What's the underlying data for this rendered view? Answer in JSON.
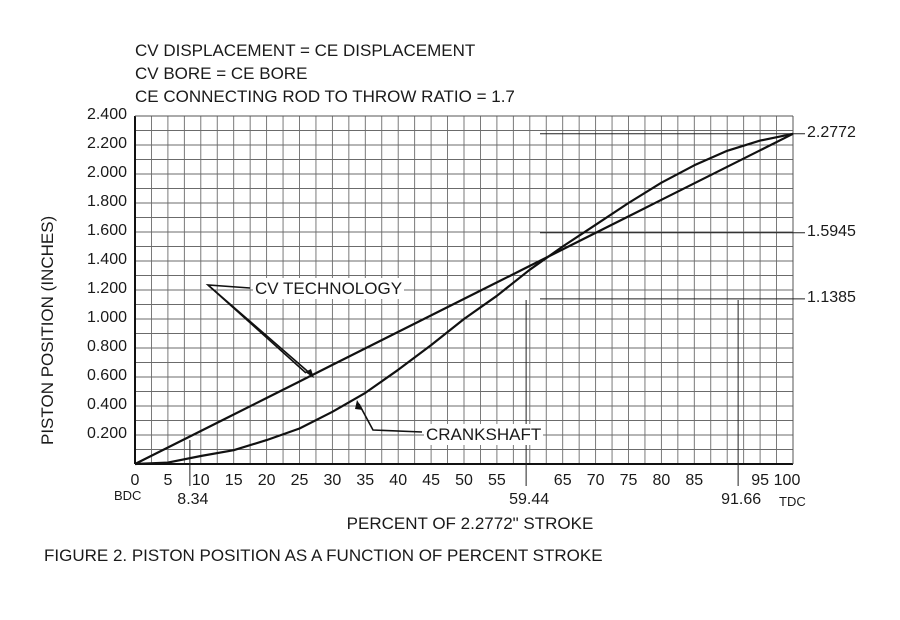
{
  "header": {
    "notes": [
      "CV DISPLACEMENT = CE DISPLACEMENT",
      "CV BORE = CE BORE",
      "CE CONNECTING ROD TO THROW RATIO =  1.7"
    ]
  },
  "chart_data": {
    "type": "line",
    "title": "FIGURE 2.  PISTON POSITION AS A FUNCTION OF PERCENT STROKE",
    "xlabel": "PERCENT OF 2.2772\" STROKE",
    "ylabel": "PISTON POSITION (INCHES)",
    "xlim": [
      0,
      100
    ],
    "ylim": [
      0,
      2.4
    ],
    "grid": true,
    "x_ticks": [
      "0",
      "5",
      "10",
      "15",
      "20",
      "25",
      "30",
      "35",
      "40",
      "45",
      "50",
      "55",
      "65",
      "70",
      "75",
      "80",
      "85",
      "95",
      "100"
    ],
    "x_tick_values": [
      0,
      5,
      10,
      15,
      20,
      25,
      30,
      35,
      40,
      45,
      50,
      55,
      65,
      70,
      75,
      80,
      85,
      95,
      100
    ],
    "x_end_labels": {
      "start": "BDC",
      "end": "TDC"
    },
    "x_markers": [
      {
        "value": 8.34,
        "label": "8.34"
      },
      {
        "value": 59.44,
        "label": "59.44"
      },
      {
        "value": 91.66,
        "label": "91.66"
      }
    ],
    "y_ticks": [
      "0.200",
      "0.400",
      "0.600",
      "0.800",
      "1.000",
      "1.200",
      "1.400",
      "1.600",
      "1.800",
      "2.000",
      "2.200",
      "2.400"
    ],
    "y_tick_values": [
      0.2,
      0.4,
      0.6,
      0.8,
      1.0,
      1.2,
      1.4,
      1.6,
      1.8,
      2.0,
      2.2,
      2.4
    ],
    "y_markers": [
      {
        "value": 2.2772,
        "label": "2.2772"
      },
      {
        "value": 1.5945,
        "label": "1.5945"
      },
      {
        "value": 1.1385,
        "label": "1.1385"
      }
    ],
    "x": [
      0,
      5,
      10,
      15,
      20,
      25,
      30,
      35,
      40,
      45,
      50,
      55,
      60,
      65,
      70,
      75,
      80,
      85,
      90,
      95,
      100
    ],
    "series": [
      {
        "name": "CV TECHNOLOGY",
        "values": [
          0,
          0.1139,
          0.2277,
          0.3416,
          0.4554,
          0.5693,
          0.6832,
          0.797,
          0.9109,
          1.0247,
          1.1386,
          1.2525,
          1.3663,
          1.4802,
          1.594,
          1.7079,
          1.8218,
          1.9356,
          2.0495,
          2.1633,
          2.2772
        ]
      },
      {
        "name": "CRANKSHAFT",
        "values": [
          0,
          0.01,
          0.055,
          0.095,
          0.165,
          0.245,
          0.36,
          0.49,
          0.65,
          0.82,
          1.0,
          1.16,
          1.34,
          1.5,
          1.65,
          1.8,
          1.94,
          2.06,
          2.16,
          2.23,
          2.2772
        ]
      }
    ],
    "annotations": [
      {
        "text": "CV TECHNOLOGY",
        "points_to": "CV TECHNOLOGY"
      },
      {
        "text": "CRANKSHAFT",
        "points_to": "CRANKSHAFT"
      }
    ]
  }
}
